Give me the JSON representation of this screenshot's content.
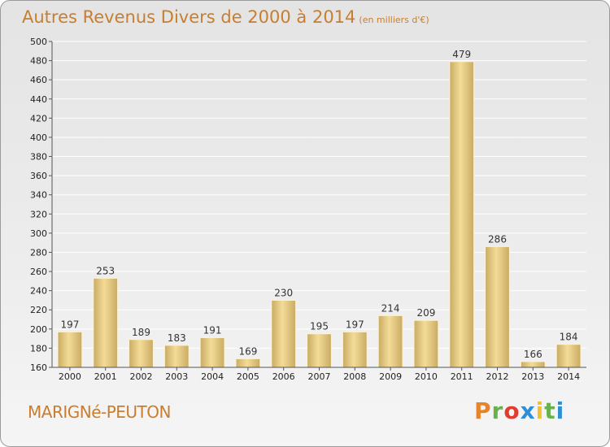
{
  "header": {
    "title": "Autres Revenus Divers de 2000 à 2014",
    "subtitle": "(en milliers d'€)"
  },
  "footer": {
    "commune": "MARIGNé-PEUTON",
    "logo_text": "Proxiti",
    "logo_colors": [
      "#e8832a",
      "#6ab04c",
      "#e03c31",
      "#2d8fd5",
      "#f2c12e",
      "#6ab04c",
      "#2d8fd5"
    ]
  },
  "chart_data": {
    "type": "bar",
    "title": "Autres Revenus Divers de 2000 à 2014",
    "subtitle": "(en milliers d'€)",
    "categories": [
      "2000",
      "2001",
      "2002",
      "2003",
      "2004",
      "2005",
      "2006",
      "2007",
      "2008",
      "2009",
      "2010",
      "2011",
      "2012",
      "2013",
      "2014"
    ],
    "values": [
      197,
      253,
      189,
      183,
      191,
      169,
      230,
      195,
      197,
      214,
      209,
      479,
      286,
      166,
      184
    ],
    "ylim": [
      160,
      500
    ],
    "yticks": [
      160,
      180,
      200,
      220,
      240,
      260,
      280,
      300,
      320,
      340,
      360,
      380,
      400,
      420,
      440,
      460,
      480,
      500
    ],
    "grid": true,
    "bar_color": "#e8cf86"
  }
}
